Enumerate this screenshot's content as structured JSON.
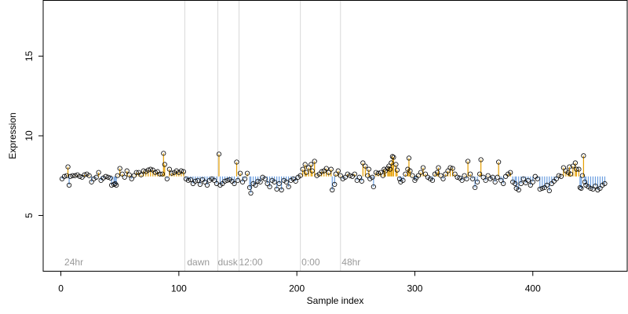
{
  "chart_data": {
    "type": "scatter",
    "title": "",
    "xlabel": "Sample index",
    "ylabel": "Expression",
    "xlim": [
      -15,
      480
    ],
    "ylim": [
      1.5,
      18.5
    ],
    "x_ticks": [
      0,
      100,
      200,
      300,
      400
    ],
    "y_ticks": [
      5,
      10,
      15
    ],
    "x_tick_labels": [
      "0",
      "100",
      "200",
      "300",
      "400"
    ],
    "y_tick_labels": [
      "5",
      "10",
      "15"
    ],
    "grid": false,
    "baseline": 7.45,
    "colors": {
      "above_baseline": "#e69f00",
      "below_baseline": "#6c9fe0",
      "point_stroke": "#000000",
      "separator": "#d8d8d8",
      "region_label": "#9a9a9a"
    },
    "separators": [
      105,
      133,
      151,
      203,
      237
    ],
    "region_labels": [
      {
        "x": 3,
        "text": "24hr"
      },
      {
        "x": 107,
        "text": "dawn"
      },
      {
        "x": 133,
        "text": "dusk"
      },
      {
        "x": 151,
        "text": "12:00"
      },
      {
        "x": 204,
        "text": "0:00"
      },
      {
        "x": 238,
        "text": "48hr"
      }
    ],
    "series": [
      {
        "points": [
          [
            1,
            7.3
          ],
          [
            3,
            7.45
          ],
          [
            5,
            7.5
          ],
          [
            6,
            8.05
          ],
          [
            7,
            6.9
          ],
          [
            8,
            7.45
          ],
          [
            10,
            7.5
          ],
          [
            12,
            7.5
          ],
          [
            14,
            7.55
          ],
          [
            16,
            7.45
          ],
          [
            18,
            7.4
          ],
          [
            20,
            7.55
          ],
          [
            22,
            7.6
          ],
          [
            24,
            7.5
          ],
          [
            26,
            7.1
          ],
          [
            28,
            7.3
          ],
          [
            30,
            7.4
          ],
          [
            32,
            7.7
          ],
          [
            34,
            7.2
          ],
          [
            36,
            7.35
          ],
          [
            38,
            7.45
          ],
          [
            40,
            7.4
          ],
          [
            42,
            7.35
          ],
          [
            43,
            6.9
          ],
          [
            45,
            6.95
          ],
          [
            46,
            7.0
          ],
          [
            47,
            6.9
          ],
          [
            48,
            7.5
          ],
          [
            50,
            7.95
          ],
          [
            52,
            7.6
          ],
          [
            54,
            7.4
          ],
          [
            56,
            7.8
          ],
          [
            58,
            7.55
          ],
          [
            60,
            7.3
          ],
          [
            62,
            7.5
          ],
          [
            64,
            7.7
          ],
          [
            66,
            7.7
          ],
          [
            68,
            7.55
          ],
          [
            70,
            7.8
          ],
          [
            72,
            7.75
          ],
          [
            74,
            7.85
          ],
          [
            76,
            7.9
          ],
          [
            78,
            7.85
          ],
          [
            80,
            7.7
          ],
          [
            82,
            7.75
          ],
          [
            84,
            7.6
          ],
          [
            86,
            7.6
          ],
          [
            87,
            8.9
          ],
          [
            88,
            8.2
          ],
          [
            90,
            7.3
          ],
          [
            92,
            7.9
          ],
          [
            94,
            7.65
          ],
          [
            96,
            7.7
          ],
          [
            98,
            7.8
          ],
          [
            100,
            7.7
          ],
          [
            102,
            7.8
          ],
          [
            104,
            7.75
          ],
          [
            106,
            7.3
          ],
          [
            108,
            7.2
          ],
          [
            110,
            7.25
          ],
          [
            112,
            7.0
          ],
          [
            114,
            7.15
          ],
          [
            116,
            7.2
          ],
          [
            118,
            6.95
          ],
          [
            120,
            7.25
          ],
          [
            122,
            7.1
          ],
          [
            124,
            6.9
          ],
          [
            126,
            7.2
          ],
          [
            128,
            7.3
          ],
          [
            130,
            7.2
          ],
          [
            132,
            7.0
          ],
          [
            134,
            8.85
          ],
          [
            135,
            6.9
          ],
          [
            137,
            7.0
          ],
          [
            139,
            7.15
          ],
          [
            141,
            7.2
          ],
          [
            143,
            7.25
          ],
          [
            145,
            7.15
          ],
          [
            147,
            7.0
          ],
          [
            149,
            8.35
          ],
          [
            150,
            7.2
          ],
          [
            152,
            7.65
          ],
          [
            154,
            7.1
          ],
          [
            156,
            7.3
          ],
          [
            158,
            7.65
          ],
          [
            160,
            6.75
          ],
          [
            161,
            6.4
          ],
          [
            163,
            7.0
          ],
          [
            165,
            6.9
          ],
          [
            167,
            7.15
          ],
          [
            169,
            7.1
          ],
          [
            171,
            7.4
          ],
          [
            173,
            7.3
          ],
          [
            175,
            7.0
          ],
          [
            177,
            6.8
          ],
          [
            179,
            7.2
          ],
          [
            181,
            7.1
          ],
          [
            183,
            6.65
          ],
          [
            185,
            7.0
          ],
          [
            187,
            6.6
          ],
          [
            189,
            7.2
          ],
          [
            191,
            7.1
          ],
          [
            193,
            6.8
          ],
          [
            195,
            7.2
          ],
          [
            197,
            7.3
          ],
          [
            199,
            7.15
          ],
          [
            201,
            7.4
          ],
          [
            203,
            7.5
          ],
          [
            205,
            7.9
          ],
          [
            207,
            8.2
          ],
          [
            208,
            7.7
          ],
          [
            210,
            8.0
          ],
          [
            212,
            8.2
          ],
          [
            213,
            7.8
          ],
          [
            215,
            8.4
          ],
          [
            217,
            7.5
          ],
          [
            219,
            7.6
          ],
          [
            221,
            7.75
          ],
          [
            223,
            7.8
          ],
          [
            225,
            7.95
          ],
          [
            227,
            7.7
          ],
          [
            229,
            7.9
          ],
          [
            230,
            6.6
          ],
          [
            232,
            6.95
          ],
          [
            233,
            7.6
          ],
          [
            235,
            7.8
          ],
          [
            237,
            7.5
          ],
          [
            239,
            7.3
          ],
          [
            241,
            7.4
          ],
          [
            243,
            7.6
          ],
          [
            245,
            7.5
          ],
          [
            247,
            7.45
          ],
          [
            249,
            7.6
          ],
          [
            251,
            7.2
          ],
          [
            253,
            7.4
          ],
          [
            255,
            7.15
          ],
          [
            256,
            8.3
          ],
          [
            258,
            8.1
          ],
          [
            260,
            7.5
          ],
          [
            261,
            7.9
          ],
          [
            262,
            7.3
          ],
          [
            264,
            7.4
          ],
          [
            265,
            6.8
          ],
          [
            267,
            7.7
          ],
          [
            269,
            7.65
          ],
          [
            271,
            7.7
          ],
          [
            273,
            7.5
          ],
          [
            274,
            7.9
          ],
          [
            275,
            7.8
          ],
          [
            277,
            7.95
          ],
          [
            278,
            8.1
          ],
          [
            279,
            7.9
          ],
          [
            280,
            8.3
          ],
          [
            281,
            8.7
          ],
          [
            282,
            8.65
          ],
          [
            284,
            8.2
          ],
          [
            285,
            7.85
          ],
          [
            287,
            7.3
          ],
          [
            288,
            7.1
          ],
          [
            290,
            7.2
          ],
          [
            292,
            7.6
          ],
          [
            294,
            7.9
          ],
          [
            295,
            8.6
          ],
          [
            296,
            7.8
          ],
          [
            298,
            7.5
          ],
          [
            300,
            7.2
          ],
          [
            301,
            7.35
          ],
          [
            303,
            7.5
          ],
          [
            305,
            7.7
          ],
          [
            307,
            8.0
          ],
          [
            309,
            7.6
          ],
          [
            311,
            7.4
          ],
          [
            313,
            7.3
          ],
          [
            315,
            7.2
          ],
          [
            317,
            7.6
          ],
          [
            319,
            7.7
          ],
          [
            320,
            8.0
          ],
          [
            322,
            7.5
          ],
          [
            324,
            7.3
          ],
          [
            326,
            7.6
          ],
          [
            328,
            7.8
          ],
          [
            330,
            8.0
          ],
          [
            332,
            7.95
          ],
          [
            334,
            7.6
          ],
          [
            336,
            7.4
          ],
          [
            338,
            7.35
          ],
          [
            340,
            7.2
          ],
          [
            342,
            7.5
          ],
          [
            344,
            7.3
          ],
          [
            345,
            8.4
          ],
          [
            347,
            7.6
          ],
          [
            349,
            7.3
          ],
          [
            351,
            6.75
          ],
          [
            353,
            7.1
          ],
          [
            355,
            7.6
          ],
          [
            356,
            8.5
          ],
          [
            358,
            7.4
          ],
          [
            360,
            7.2
          ],
          [
            362,
            7.5
          ],
          [
            364,
            7.3
          ],
          [
            366,
            7.4
          ],
          [
            368,
            7.1
          ],
          [
            370,
            7.4
          ],
          [
            371,
            8.35
          ],
          [
            373,
            7.2
          ],
          [
            375,
            7.0
          ],
          [
            377,
            7.45
          ],
          [
            379,
            7.6
          ],
          [
            381,
            7.7
          ],
          [
            383,
            7.1
          ],
          [
            385,
            7.0
          ],
          [
            386,
            6.7
          ],
          [
            388,
            6.6
          ],
          [
            390,
            7.0
          ],
          [
            392,
            7.3
          ],
          [
            394,
            7.05
          ],
          [
            396,
            7.2
          ],
          [
            398,
            6.9
          ],
          [
            400,
            7.1
          ],
          [
            402,
            7.45
          ],
          [
            404,
            7.3
          ],
          [
            406,
            6.65
          ],
          [
            408,
            6.7
          ],
          [
            410,
            6.75
          ],
          [
            412,
            6.9
          ],
          [
            414,
            6.55
          ],
          [
            416,
            7.0
          ],
          [
            418,
            7.15
          ],
          [
            420,
            7.3
          ],
          [
            422,
            7.5
          ],
          [
            424,
            7.45
          ],
          [
            426,
            8.0
          ],
          [
            428,
            7.8
          ],
          [
            430,
            7.7
          ],
          [
            431,
            8.05
          ],
          [
            432,
            7.6
          ],
          [
            434,
            8.1
          ],
          [
            436,
            8.3
          ],
          [
            437,
            7.9
          ],
          [
            439,
            7.9
          ],
          [
            440,
            6.75
          ],
          [
            441,
            6.7
          ],
          [
            442,
            7.5
          ],
          [
            443,
            8.75
          ],
          [
            444,
            7.1
          ],
          [
            445,
            6.9
          ],
          [
            447,
            6.8
          ],
          [
            449,
            6.7
          ],
          [
            451,
            6.65
          ],
          [
            453,
            6.85
          ],
          [
            455,
            6.6
          ],
          [
            457,
            6.7
          ],
          [
            459,
            6.9
          ],
          [
            461,
            7.0
          ]
        ]
      }
    ]
  }
}
